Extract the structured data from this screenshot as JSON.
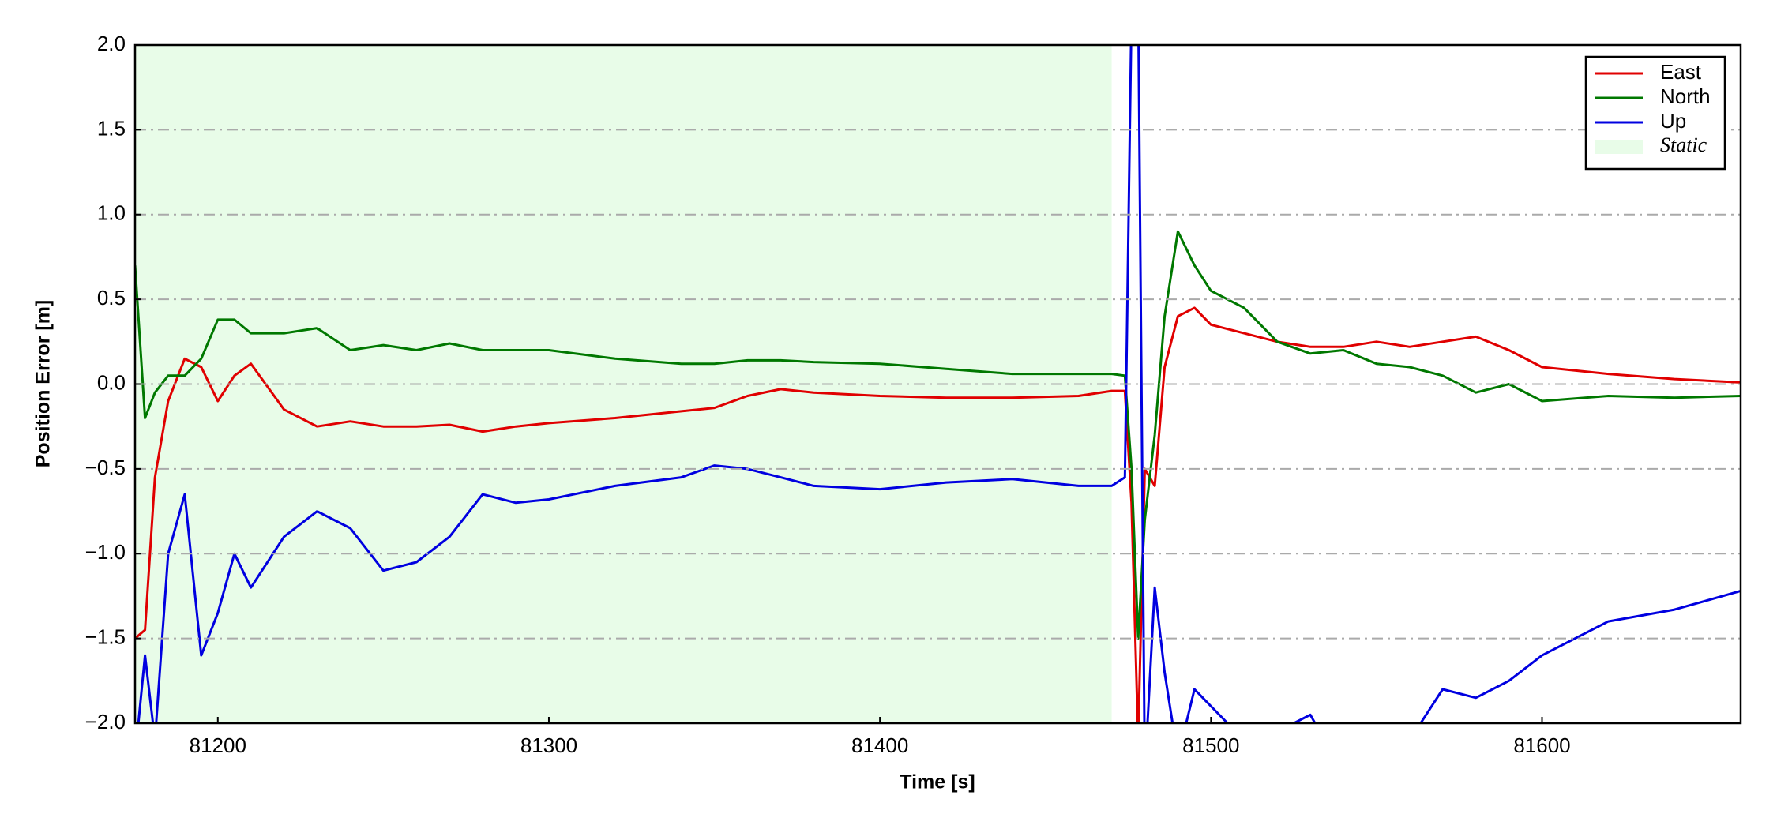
{
  "chart_data": {
    "type": "line",
    "x_label": "Time [s]",
    "y_label": "Position Error [m]",
    "xlim": [
      81175,
      81660
    ],
    "ylim": [
      -2.0,
      2.0
    ],
    "xticks": [
      81200,
      81300,
      81400,
      81500,
      81600
    ],
    "yticks": [
      {
        "value": -2.0,
        "label": "−2.0"
      },
      {
        "value": -1.5,
        "label": "−1.5"
      },
      {
        "value": -1.0,
        "label": "−1.0"
      },
      {
        "value": -0.5,
        "label": "−0.5"
      },
      {
        "value": 0.0,
        "label": "0.0"
      },
      {
        "value": 0.5,
        "label": "0.5"
      },
      {
        "value": 1.0,
        "label": "1.0"
      },
      {
        "value": 1.5,
        "label": "1.5"
      },
      {
        "value": 2.0,
        "label": "2.0"
      }
    ],
    "grid": true,
    "legend_position": "upper right",
    "shaded_regions": [
      {
        "name": "Static",
        "xmin": 81175,
        "xmax": 81470,
        "color": "#e8fce8"
      }
    ],
    "x": [
      81175,
      81178,
      81181,
      81185,
      81190,
      81195,
      81200,
      81205,
      81210,
      81220,
      81230,
      81240,
      81250,
      81260,
      81270,
      81280,
      81290,
      81300,
      81320,
      81340,
      81350,
      81360,
      81370,
      81380,
      81400,
      81420,
      81440,
      81460,
      81470,
      81474,
      81476,
      81478,
      81480,
      81483,
      81486,
      81490,
      81495,
      81500,
      81510,
      81520,
      81530,
      81540,
      81550,
      81560,
      81570,
      81580,
      81590,
      81600,
      81620,
      81640,
      81660
    ],
    "series": [
      {
        "name": "East",
        "color": "#e00000",
        "values": [
          -1.5,
          -1.45,
          -0.55,
          -0.1,
          0.15,
          0.1,
          -0.1,
          0.05,
          0.12,
          -0.15,
          -0.25,
          -0.22,
          -0.25,
          -0.25,
          -0.24,
          -0.28,
          -0.25,
          -0.23,
          -0.2,
          -0.16,
          -0.14,
          -0.07,
          -0.03,
          -0.05,
          -0.07,
          -0.08,
          -0.08,
          -0.07,
          -0.04,
          -0.04,
          -0.7,
          -2.1,
          -0.5,
          -0.6,
          0.1,
          0.4,
          0.45,
          0.35,
          0.3,
          0.25,
          0.22,
          0.22,
          0.25,
          0.22,
          0.25,
          0.28,
          0.2,
          0.1,
          0.06,
          0.03,
          0.01
        ]
      },
      {
        "name": "North",
        "color": "#007800",
        "values": [
          0.7,
          -0.2,
          -0.05,
          0.05,
          0.05,
          0.15,
          0.38,
          0.38,
          0.3,
          0.3,
          0.33,
          0.2,
          0.23,
          0.2,
          0.24,
          0.2,
          0.2,
          0.2,
          0.15,
          0.12,
          0.12,
          0.14,
          0.14,
          0.13,
          0.12,
          0.09,
          0.06,
          0.06,
          0.06,
          0.05,
          -0.5,
          -1.5,
          -0.8,
          -0.3,
          0.4,
          0.9,
          0.7,
          0.55,
          0.45,
          0.25,
          0.18,
          0.2,
          0.12,
          0.1,
          0.05,
          -0.05,
          0.0,
          -0.1,
          -0.07,
          -0.08,
          -0.07
        ]
      },
      {
        "name": "Up",
        "color": "#0000e0",
        "values": [
          -2.2,
          -1.6,
          -2.1,
          -1.0,
          -0.65,
          -1.6,
          -1.35,
          -1.0,
          -1.2,
          -0.9,
          -0.75,
          -0.85,
          -1.1,
          -1.05,
          -0.9,
          -0.65,
          -0.7,
          -0.68,
          -0.6,
          -0.55,
          -0.48,
          -0.5,
          -0.55,
          -0.6,
          -0.62,
          -0.58,
          -0.56,
          -0.6,
          -0.6,
          -0.55,
          2.2,
          2.3,
          -2.3,
          -1.2,
          -1.7,
          -2.2,
          -1.8,
          -1.9,
          -2.1,
          -2.05,
          -1.95,
          -2.3,
          -2.3,
          -2.1,
          -1.8,
          -1.85,
          -1.75,
          -1.6,
          -1.4,
          -1.33,
          -1.22
        ]
      }
    ]
  }
}
